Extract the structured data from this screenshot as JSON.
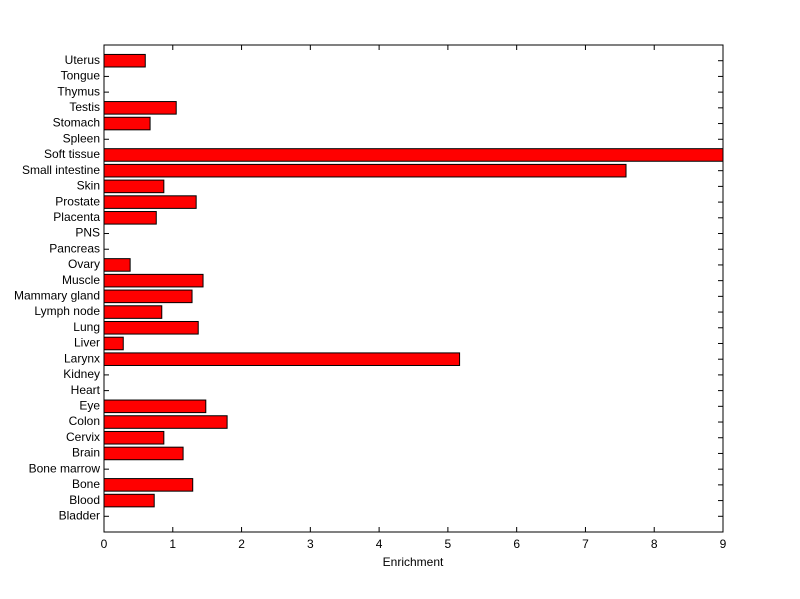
{
  "chart_data": {
    "type": "barh",
    "x_label": "Enrichment",
    "categories": [
      "Bladder",
      "Blood",
      "Bone",
      "Bone marrow",
      "Brain",
      "Cervix",
      "Colon",
      "Eye",
      "Heart",
      "Kidney",
      "Larynx",
      "Liver",
      "Lung",
      "Lymph node",
      "Mammary gland",
      "Muscle",
      "Ovary",
      "Pancreas",
      "PNS",
      "Placenta",
      "Prostate",
      "Skin",
      "Small intestine",
      "Soft tissue",
      "Spleen",
      "Stomach",
      "Testis",
      "Thymus",
      "Tongue",
      "Uterus"
    ],
    "values": [
      0,
      0.73,
      1.29,
      0,
      1.15,
      0.87,
      1.79,
      1.48,
      0,
      0,
      5.17,
      0.28,
      1.37,
      0.84,
      1.28,
      1.44,
      0.38,
      0,
      0,
      0.76,
      1.34,
      0.87,
      7.59,
      9.0,
      0,
      0.67,
      1.05,
      0,
      0,
      0.6
    ],
    "color": "#ff0000",
    "xlim": [
      0,
      9
    ],
    "xticks": [
      0,
      1,
      2,
      3,
      4,
      5,
      6,
      7,
      8,
      9
    ]
  }
}
